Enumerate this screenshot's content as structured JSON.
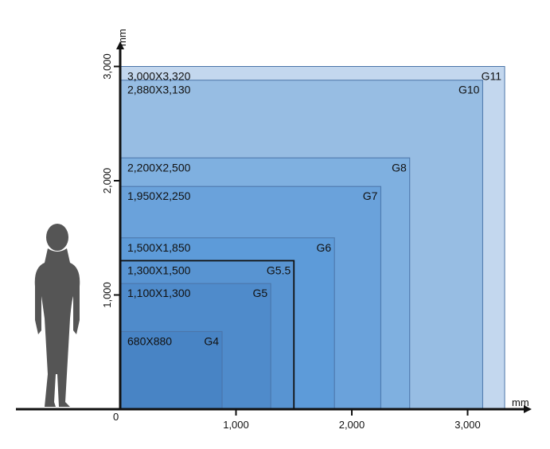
{
  "chart_data": {
    "type": "nested-rectangles",
    "x_unit": "mm",
    "y_unit": "mm",
    "origin_label": "0",
    "x_ticks": [
      {
        "value": 1000,
        "label": "1,000"
      },
      {
        "value": 2000,
        "label": "2,000"
      },
      {
        "value": 3000,
        "label": "3,000"
      }
    ],
    "y_ticks": [
      {
        "value": 1000,
        "label": "1,000"
      },
      {
        "value": 2000,
        "label": "2,000"
      },
      {
        "value": 3000,
        "label": "3,000"
      }
    ],
    "xlim": [
      0,
      3400
    ],
    "ylim": [
      0,
      3400
    ],
    "generations": [
      {
        "name": "G11",
        "size_label": "3,000X3,320",
        "width": 3320,
        "height": 3000,
        "color": "#c3d7ee"
      },
      {
        "name": "G10",
        "size_label": "2,880X3,130",
        "width": 3130,
        "height": 2880,
        "color": "#97bde3"
      },
      {
        "name": "G8",
        "size_label": "2,200X2,500",
        "width": 2500,
        "height": 2200,
        "color": "#7fb0e0"
      },
      {
        "name": "G7",
        "size_label": "1,950X2,250",
        "width": 2250,
        "height": 1950,
        "color": "#6aa2db"
      },
      {
        "name": "G6",
        "size_label": "1,500X1,850",
        "width": 1850,
        "height": 1500,
        "color": "#5d9bd9"
      },
      {
        "name": "G5.5",
        "size_label": "1,300X1,500",
        "width": 1500,
        "height": 1300,
        "color": "#5894d2",
        "highlight_border": true
      },
      {
        "name": "G5",
        "size_label": "1,100X1,300",
        "width": 1300,
        "height": 1100,
        "color": "#4f8bcb"
      },
      {
        "name": "G4",
        "size_label": "680X880",
        "width": 880,
        "height": 680,
        "color": "#4884c5"
      }
    ],
    "colors": {
      "axis": "#111111",
      "rect_border": "#4a74a8",
      "highlight_border": "#111111",
      "silhouette": "#555555"
    }
  }
}
